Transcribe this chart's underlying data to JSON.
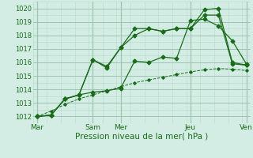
{
  "title": "",
  "xlabel": "Pression niveau de la mer( hPa )",
  "background_color": "#d4ede4",
  "grid_color_major": "#9dc4b4",
  "grid_color_minor": "#b8d8cc",
  "line_color": "#1a6b1a",
  "ylim": [
    1011.5,
    1020.5
  ],
  "yticks": [
    1012,
    1013,
    1014,
    1015,
    1016,
    1017,
    1018,
    1019,
    1020
  ],
  "xtick_labels": [
    "Mar",
    "",
    "",
    "",
    "Sam",
    "Mer",
    "",
    "",
    "",
    "",
    "",
    "Jeu",
    "",
    "",
    "",
    "Ven"
  ],
  "xtick_major_labels": [
    "Mar",
    "Sam",
    "Mer",
    "Jeu",
    "Ven"
  ],
  "xtick_major_pos": [
    0,
    4,
    6,
    11,
    15
  ],
  "n_points": 16,
  "series1": [
    1012.0,
    1012.1,
    1013.3,
    1013.6,
    1013.8,
    1013.9,
    1014.1,
    1016.1,
    1016.0,
    1016.4,
    1016.3,
    1019.1,
    1019.2,
    1018.7,
    1017.6,
    1015.9
  ],
  "series2": [
    1012.0,
    1012.1,
    1013.3,
    1013.6,
    1016.2,
    1015.6,
    1017.1,
    1018.0,
    1018.5,
    1018.3,
    1018.5,
    1018.5,
    1019.5,
    1019.5,
    1015.9,
    1015.8
  ],
  "series3": [
    1012.0,
    1012.1,
    1013.3,
    1013.6,
    1016.2,
    1015.7,
    1017.1,
    1018.5,
    1018.5,
    1018.3,
    1018.5,
    1018.5,
    1019.9,
    1020.0,
    1016.0,
    1015.8
  ],
  "series4_dashed": [
    1012.0,
    1012.4,
    1012.9,
    1013.3,
    1013.6,
    1013.9,
    1014.2,
    1014.5,
    1014.7,
    1014.9,
    1015.1,
    1015.3,
    1015.45,
    1015.55,
    1015.5,
    1015.4
  ]
}
